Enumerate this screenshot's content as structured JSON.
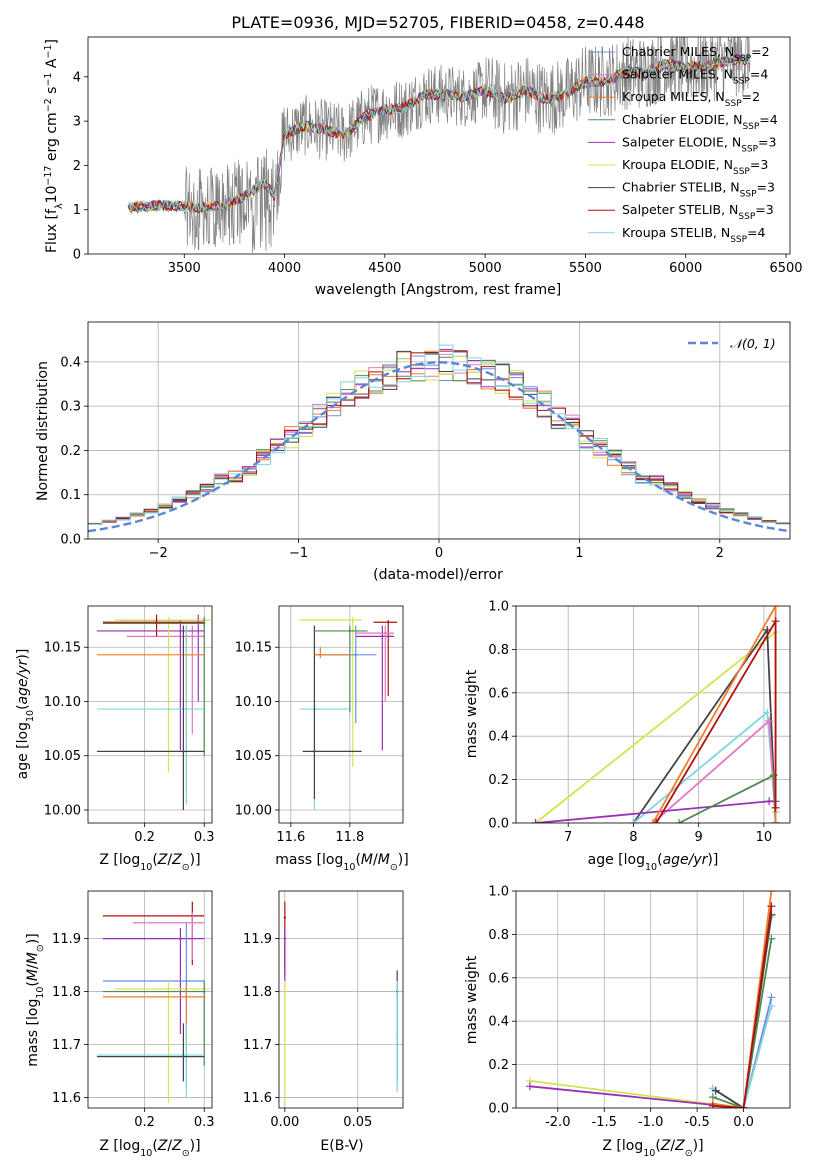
{
  "chart_data": [
    {
      "id": "spectrum",
      "type": "line",
      "title": "PLATE=0936, MJD=52705, FIBERID=0458, z=0.448",
      "xlabel": "wavelength [Angstrom, rest frame]",
      "ylabel": "Flux [f_λ 10^-17 erg cm^-2 s^-1 A^-1]",
      "xlim": [
        3020,
        6520
      ],
      "ylim": [
        0,
        4.9
      ],
      "xticks": [
        3500,
        4000,
        4500,
        5000,
        5500,
        6000,
        6500
      ],
      "yticks": [
        0,
        1,
        2,
        3,
        4
      ],
      "data_color": "#808080",
      "data_range": [
        3220,
        6320
      ],
      "legend_position": "upper right",
      "continuum_knots": [
        [
          3220,
          1.05
        ],
        [
          3400,
          1.1
        ],
        [
          3600,
          1.05
        ],
        [
          3700,
          1.1
        ],
        [
          3800,
          1.3
        ],
        [
          3900,
          1.6
        ],
        [
          3950,
          1.3
        ],
        [
          4000,
          2.7
        ],
        [
          4100,
          2.9
        ],
        [
          4200,
          2.8
        ],
        [
          4300,
          2.7
        ],
        [
          4400,
          3.1
        ],
        [
          4500,
          3.25
        ],
        [
          4600,
          3.3
        ],
        [
          4700,
          3.6
        ],
        [
          4800,
          3.6
        ],
        [
          4900,
          3.55
        ],
        [
          5000,
          3.7
        ],
        [
          5100,
          3.5
        ],
        [
          5200,
          3.7
        ],
        [
          5300,
          3.5
        ],
        [
          5400,
          3.6
        ],
        [
          5500,
          3.9
        ],
        [
          5600,
          3.9
        ],
        [
          5700,
          4.1
        ],
        [
          5800,
          4.1
        ],
        [
          5900,
          4.3
        ],
        [
          6000,
          4.2
        ],
        [
          6100,
          4.25
        ],
        [
          6200,
          4.35
        ],
        [
          6320,
          4.4
        ]
      ],
      "models": [
        {
          "name": "Chabrier MILES",
          "nssp": "2",
          "color": "#6b8fe3"
        },
        {
          "name": "Salpeter MILES",
          "nssp": "4",
          "color": "#e377c2"
        },
        {
          "name": "Kroupa MILES",
          "nssp": "2",
          "color": "#ef7f2c"
        },
        {
          "name": "Chabrier ELODIE",
          "nssp": "4",
          "color": "#4f8a52"
        },
        {
          "name": "Salpeter ELODIE",
          "nssp": "3",
          "color": "#9b30b8"
        },
        {
          "name": "Kroupa ELODIE",
          "nssp": "3",
          "color": "#d3e34f"
        },
        {
          "name": "Chabrier STELIB",
          "nssp": "3",
          "color": "#444444"
        },
        {
          "name": "Salpeter STELIB",
          "nssp": "3",
          "color": "#b21010"
        },
        {
          "name": "Kroupa STELIB",
          "nssp": "4",
          "color": "#7fd6e0"
        }
      ]
    },
    {
      "id": "residuals",
      "type": "histogram",
      "xlabel": "(data-model)/error",
      "ylabel": "Normed distribution",
      "xlim": [
        -2.5,
        2.5
      ],
      "ylim": [
        0,
        0.49
      ],
      "xticks": [
        -2,
        -1,
        0,
        1,
        2
      ],
      "yticks": [
        0.0,
        0.1,
        0.2,
        0.3,
        0.4
      ],
      "bin_width": 0.1,
      "grid": true,
      "legend": "𝒩(0, 1)",
      "normal_color": "#5b86d6"
    },
    {
      "id": "age-vs-Z",
      "type": "scatter",
      "xlabel": "Z [log10(Z/Z⊙)]",
      "ylabel": "age [log10(age/yr)]",
      "xlim": [
        0.105,
        0.313
      ],
      "ylim": [
        9.988,
        10.188
      ],
      "xticks": [
        0.2,
        0.3
      ],
      "yticks": [
        10.0,
        10.05,
        10.1,
        10.15
      ],
      "grid": true,
      "points": [
        {
          "x": 0.29,
          "y": 10.175,
          "xerr": [
            0.16,
            0.3
          ],
          "yerr": [
            10.1,
            10.18
          ],
          "color": "#9b30b8"
        },
        {
          "x": 0.28,
          "y": 10.16,
          "xerr": [
            0.17,
            0.3
          ],
          "yerr": [
            10.07,
            10.17
          ],
          "color": "#e377c2"
        },
        {
          "x": 0.26,
          "y": 10.165,
          "xerr": [
            0.12,
            0.3
          ],
          "yerr": [
            10.055,
            10.175
          ],
          "color": "#9b30b8"
        },
        {
          "x": 0.24,
          "y": 10.175,
          "xerr": [
            0.15,
            0.31
          ],
          "yerr": [
            10.035,
            10.178
          ],
          "color": "#d3e34f"
        },
        {
          "x": 0.3,
          "y": 10.172,
          "xerr": [
            0.13,
            0.3
          ],
          "yerr": [
            10.05,
            10.178
          ],
          "color": "#4f8a52"
        },
        {
          "x": 0.27,
          "y": 10.143,
          "xerr": [
            0.12,
            0.3
          ],
          "yerr": [
            10.015,
            10.17
          ],
          "color": "#ef7f2c"
        },
        {
          "x": 0.27,
          "y": 10.093,
          "xerr": [
            0.12,
            0.3
          ],
          "yerr": [
            10.005,
            10.17
          ],
          "color": "#7fd6e0"
        },
        {
          "x": 0.265,
          "y": 10.054,
          "xerr": [
            0.12,
            0.3
          ],
          "yerr": [
            10.0,
            10.17
          ],
          "color": "#444444"
        },
        {
          "x": 0.22,
          "y": 10.173,
          "xerr": [
            0.13,
            0.3
          ],
          "yerr": [
            10.16,
            10.18
          ],
          "color": "#b21010"
        }
      ]
    },
    {
      "id": "age-vs-mass",
      "type": "scatter",
      "xlabel": "mass [log10(M/M⊙)]",
      "ylabel": "",
      "xlim": [
        11.56,
        11.98
      ],
      "ylim": [
        9.988,
        10.188
      ],
      "xticks": [
        11.6,
        11.8
      ],
      "yticks": [
        10.0,
        10.05,
        10.1,
        10.15
      ],
      "grid": true,
      "points": [
        {
          "x": 11.93,
          "y": 10.173,
          "xerr": [
            11.88,
            11.96
          ],
          "yerr": [
            10.105,
            10.175
          ],
          "color": "#b21010"
        },
        {
          "x": 11.91,
          "y": 10.16,
          "xerr": [
            11.82,
            11.95
          ],
          "yerr": [
            10.055,
            10.17
          ],
          "color": "#9b30b8"
        },
        {
          "x": 11.92,
          "y": 10.163,
          "xerr": [
            11.82,
            11.95
          ],
          "yerr": [
            10.1,
            10.17
          ],
          "color": "#e377c2"
        },
        {
          "x": 11.81,
          "y": 10.175,
          "xerr": [
            11.63,
            11.84
          ],
          "yerr": [
            10.04,
            10.178
          ],
          "color": "#d3e34f"
        },
        {
          "x": 11.82,
          "y": 10.143,
          "xerr": [
            11.68,
            11.89
          ],
          "yerr": [
            10.08,
            10.17
          ],
          "color": "#6b8fe3"
        },
        {
          "x": 11.68,
          "y": 10.093,
          "xerr": [
            11.63,
            11.8
          ],
          "yerr": [
            10.0,
            10.17
          ],
          "color": "#7fd6e0"
        },
        {
          "x": 11.68,
          "y": 10.054,
          "xerr": [
            11.64,
            11.84
          ],
          "yerr": [
            10.01,
            10.17
          ],
          "color": "#444444"
        },
        {
          "x": 11.8,
          "y": 10.165,
          "xerr": [
            11.68,
            11.86
          ],
          "yerr": [
            10.09,
            10.17
          ],
          "color": "#4f8a52"
        },
        {
          "x": 11.7,
          "y": 10.143,
          "xerr": [
            11.68,
            11.8
          ],
          "yerr": [
            10.14,
            10.15
          ],
          "color": "#ef7f2c"
        }
      ]
    },
    {
      "id": "mass-weight-vs-age",
      "type": "line",
      "xlabel": "age [log10(age/yr)]",
      "ylabel": "mass weight",
      "xlim": [
        6.2,
        10.4
      ],
      "ylim": [
        0,
        1.0
      ],
      "xticks": [
        7,
        8,
        9,
        10
      ],
      "yticks": [
        0.0,
        0.2,
        0.4,
        0.6,
        0.8,
        1.0
      ],
      "grid": true,
      "series": [
        {
          "color": "#d3e34f",
          "points": [
            [
              6.5,
              0.0
            ],
            [
              10.18,
              0.88
            ],
            [
              10.18,
              0.0
            ]
          ]
        },
        {
          "color": "#444444",
          "points": [
            [
              8.0,
              0.0
            ],
            [
              10.05,
              0.89
            ],
            [
              10.18,
              0.0
            ]
          ]
        },
        {
          "color": "#7fd6e0",
          "points": [
            [
              8.0,
              0.0
            ],
            [
              10.05,
              0.51
            ],
            [
              10.18,
              0.05
            ],
            [
              10.18,
              0.0
            ]
          ]
        },
        {
          "color": "#e377c2",
          "points": [
            [
              8.3,
              0.0
            ],
            [
              10.08,
              0.47
            ],
            [
              10.18,
              0.0
            ]
          ]
        },
        {
          "color": "#9b30b8",
          "points": [
            [
              6.5,
              0.0
            ],
            [
              10.08,
              0.1
            ],
            [
              10.18,
              0.1
            ]
          ]
        },
        {
          "color": "#4f8a52",
          "points": [
            [
              8.7,
              0.0
            ],
            [
              10.15,
              0.22
            ],
            [
              10.18,
              0.0
            ]
          ]
        },
        {
          "color": "#ef7f2c",
          "points": [
            [
              8.3,
              0.0
            ],
            [
              10.18,
              1.0
            ],
            [
              10.18,
              0.0
            ]
          ]
        },
        {
          "color": "#b21010",
          "points": [
            [
              8.35,
              0.0
            ],
            [
              10.18,
              0.93
            ],
            [
              10.18,
              0.07
            ]
          ]
        }
      ]
    },
    {
      "id": "mass-vs-Z",
      "type": "scatter",
      "xlabel": "Z [log10(Z/Z⊙)]",
      "ylabel": "mass [log10(M/M⊙)]",
      "xlim": [
        0.105,
        0.313
      ],
      "ylim": [
        11.58,
        11.99
      ],
      "xticks": [
        0.2,
        0.3
      ],
      "yticks": [
        11.6,
        11.7,
        11.8,
        11.9
      ],
      "grid": true,
      "points": [
        {
          "x": 0.28,
          "y": 11.943,
          "xerr": [
            0.13,
            0.3
          ],
          "yerr": [
            11.85,
            11.97
          ],
          "color": "#b21010"
        },
        {
          "x": 0.28,
          "y": 11.93,
          "xerr": [
            0.18,
            0.3
          ],
          "yerr": [
            11.86,
            11.95
          ],
          "color": "#e377c2"
        },
        {
          "x": 0.26,
          "y": 11.9,
          "xerr": [
            0.13,
            0.3
          ],
          "yerr": [
            11.72,
            11.92
          ],
          "color": "#9b30b8"
        },
        {
          "x": 0.27,
          "y": 11.82,
          "xerr": [
            0.13,
            0.3
          ],
          "yerr": [
            11.62,
            11.93
          ],
          "color": "#6b8fe3"
        },
        {
          "x": 0.24,
          "y": 11.805,
          "xerr": [
            0.15,
            0.31
          ],
          "yerr": [
            11.59,
            11.82
          ],
          "color": "#d3e34f"
        },
        {
          "x": 0.3,
          "y": 11.8,
          "xerr": [
            0.13,
            0.3
          ],
          "yerr": [
            11.66,
            11.82
          ],
          "color": "#4f8a52"
        },
        {
          "x": 0.27,
          "y": 11.79,
          "xerr": [
            0.13,
            0.3
          ],
          "yerr": [
            11.7,
            11.81
          ],
          "color": "#ef7f2c"
        },
        {
          "x": 0.27,
          "y": 11.68,
          "xerr": [
            0.12,
            0.3
          ],
          "yerr": [
            11.6,
            11.74
          ],
          "color": "#7fd6e0"
        },
        {
          "x": 0.265,
          "y": 11.677,
          "xerr": [
            0.12,
            0.3
          ],
          "yerr": [
            11.63,
            11.74
          ],
          "color": "#444444"
        }
      ]
    },
    {
      "id": "mass-vs-ebv",
      "type": "scatter",
      "xlabel": "E(B-V)",
      "ylabel": "",
      "xlim": [
        -0.004,
        0.081
      ],
      "ylim": [
        11.58,
        11.99
      ],
      "xticks": [
        0.0,
        0.05
      ],
      "yticks": [
        11.6,
        11.7,
        11.8,
        11.9
      ],
      "grid": true,
      "points": [
        {
          "x": 0.0,
          "y": 11.94,
          "yerr": [
            11.83,
            11.97
          ],
          "color": "#b21010"
        },
        {
          "x": 0.0,
          "y": 11.9,
          "yerr": [
            11.82,
            11.92
          ],
          "color": "#9b30b8"
        },
        {
          "x": 0.0,
          "y": 11.8,
          "yerr": [
            11.59,
            11.82
          ],
          "color": "#d3e34f"
        },
        {
          "x": 0.077,
          "y": 11.8,
          "yerr": [
            11.63,
            11.84
          ],
          "color": "#444444"
        },
        {
          "x": 0.077,
          "y": 11.72,
          "yerr": [
            11.61,
            11.82
          ],
          "color": "#7fd6e0"
        }
      ]
    },
    {
      "id": "mass-weight-vs-Z",
      "type": "line",
      "xlabel": "Z [log10(Z/Z⊙)]",
      "ylabel": "mass weight",
      "xlim": [
        -2.45,
        0.5
      ],
      "ylim": [
        0,
        1.0
      ],
      "xticks": [
        -2.0,
        -1.5,
        -1.0,
        -0.5,
        0.0
      ],
      "yticks": [
        0.0,
        0.2,
        0.4,
        0.6,
        0.8,
        1.0
      ],
      "grid": true,
      "series": [
        {
          "color": "#d3e34f",
          "points": [
            [
              -2.3,
              0.125
            ],
            [
              0.0,
              0.0
            ],
            [
              0.3,
              0.88
            ]
          ]
        },
        {
          "color": "#9b30b8",
          "points": [
            [
              -2.3,
              0.1
            ],
            [
              0.0,
              0.0
            ],
            [
              0.3,
              0.89
            ]
          ]
        },
        {
          "color": "#6b8fe3",
          "points": [
            [
              -0.33,
              0.09
            ],
            [
              0.0,
              0.0
            ],
            [
              0.3,
              0.51
            ]
          ]
        },
        {
          "color": "#7fd6e0",
          "points": [
            [
              -0.33,
              0.09
            ],
            [
              0.0,
              0.0
            ],
            [
              0.3,
              0.47
            ]
          ]
        },
        {
          "color": "#444444",
          "points": [
            [
              -0.3,
              0.08
            ],
            [
              0.0,
              0.0
            ],
            [
              0.3,
              0.89
            ]
          ]
        },
        {
          "color": "#4f8a52",
          "points": [
            [
              -0.33,
              0.05
            ],
            [
              0.0,
              0.0
            ],
            [
              0.3,
              0.78
            ]
          ]
        },
        {
          "color": "#ef7f2c",
          "points": [
            [
              -0.33,
              0.02
            ],
            [
              0.0,
              0.0
            ],
            [
              0.3,
              1.0
            ]
          ]
        },
        {
          "color": "#b21010",
          "points": [
            [
              -0.33,
              0.01
            ],
            [
              0.0,
              0.0
            ],
            [
              0.3,
              0.93
            ]
          ]
        }
      ]
    }
  ]
}
